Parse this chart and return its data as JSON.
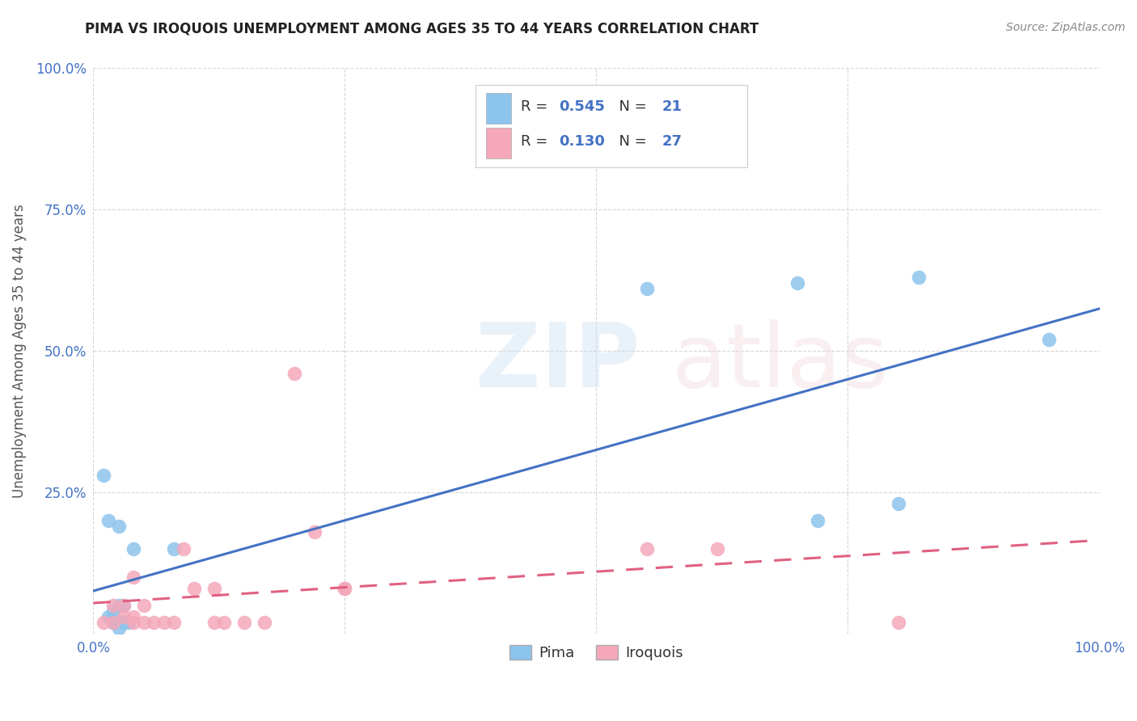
{
  "title": "PIMA VS IROQUOIS UNEMPLOYMENT AMONG AGES 35 TO 44 YEARS CORRELATION CHART",
  "source": "Source: ZipAtlas.com",
  "ylabel": "Unemployment Among Ages 35 to 44 years",
  "xlim": [
    0,
    1
  ],
  "ylim": [
    0,
    1
  ],
  "xticks": [
    0,
    0.25,
    0.5,
    0.75,
    1.0
  ],
  "yticks": [
    0,
    0.25,
    0.5,
    0.75,
    1.0
  ],
  "xtick_labels": [
    "0.0%",
    "",
    "",
    "",
    "100.0%"
  ],
  "ytick_labels": [
    "",
    "25.0%",
    "50.0%",
    "75.0%",
    "100.0%"
  ],
  "pima_R": 0.545,
  "pima_N": 21,
  "iroquois_R": 0.13,
  "iroquois_N": 27,
  "pima_color": "#8DC4ED",
  "iroquois_color": "#F4A8BA",
  "pima_line_color": "#4472C4",
  "iroquois_line_color": "#E06080",
  "pima_x": [
    0.02,
    0.025,
    0.03,
    0.015,
    0.02,
    0.025,
    0.03,
    0.035,
    0.02,
    0.025,
    0.01,
    0.015,
    0.02,
    0.04,
    0.08,
    0.55,
    0.7,
    0.8,
    0.72,
    0.82,
    0.95
  ],
  "pima_y": [
    0.02,
    0.01,
    0.02,
    0.03,
    0.04,
    0.05,
    0.05,
    0.02,
    0.03,
    0.19,
    0.28,
    0.2,
    0.02,
    0.15,
    0.15,
    0.61,
    0.62,
    0.23,
    0.2,
    0.63,
    0.52
  ],
  "iroquois_x": [
    0.01,
    0.02,
    0.02,
    0.03,
    0.03,
    0.04,
    0.04,
    0.04,
    0.05,
    0.05,
    0.06,
    0.07,
    0.08,
    0.09,
    0.1,
    0.12,
    0.12,
    0.13,
    0.15,
    0.17,
    0.2,
    0.22,
    0.25,
    0.25,
    0.55,
    0.62,
    0.8
  ],
  "iroquois_y": [
    0.02,
    0.02,
    0.05,
    0.03,
    0.05,
    0.02,
    0.03,
    0.1,
    0.02,
    0.05,
    0.02,
    0.02,
    0.02,
    0.15,
    0.08,
    0.08,
    0.02,
    0.02,
    0.02,
    0.02,
    0.46,
    0.18,
    0.08,
    0.08,
    0.15,
    0.15,
    0.02
  ]
}
